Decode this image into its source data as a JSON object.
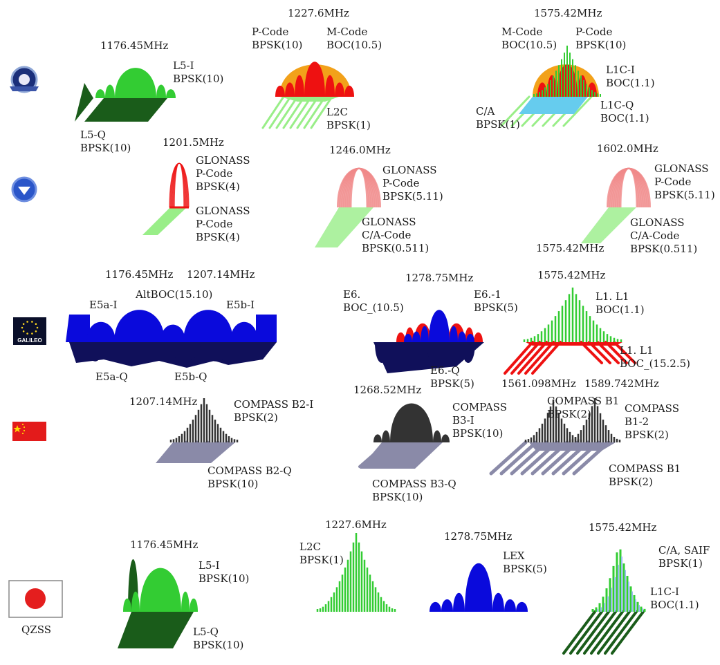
{
  "colors": {
    "gps_green": "#33cc33",
    "gps_dark_green": "#1a5c1a",
    "red": "#ee1111",
    "orange": "#f2a11a",
    "light_blue": "#66ccee",
    "pink": "#f08a8a",
    "light_green": "#99ee88",
    "blue": "#0a0adc",
    "navy": "#10105a",
    "dark_gray": "#333333",
    "slate": "#8a8aa8",
    "qzss_blue": "#99bbee"
  },
  "systems": [
    {
      "name": "GPS",
      "icon": "gps-logo-icon"
    },
    {
      "name": "GLONASS",
      "icon": "glonass-logo-icon"
    },
    {
      "name": "GALILEO",
      "icon": "galileo-logo-icon"
    },
    {
      "name": "COMPASS",
      "icon": "china-flag-icon"
    },
    {
      "name": "QZSS",
      "icon": "japan-flag-icon"
    }
  ],
  "labels": {
    "gps_l5_freq": "1176.45MHz",
    "gps_l5_i": "L5-I\nBPSK(10)",
    "gps_l5_q": "L5-Q\nBPSK(10)",
    "gps_l2_freq": "1227.6MHz",
    "gps_l2_pcode": "P-Code\nBPSK(10)",
    "gps_l2_mcode": "M-Code\nBOC(10.5)",
    "gps_l2c": "L2C\nBPSK(1)",
    "gps_l1_freq": "1575.42MHz",
    "gps_l1_mcode": "M-Code\nBOC(10.5)",
    "gps_l1_pcode": "P-Code\nBPSK(10)",
    "gps_l1ci": "L1C-I\nBOC(1.1)",
    "gps_l1cq": "L1C-Q\nBOC(1.1)",
    "gps_ca": "C/A\nBPSK(1)",
    "glo_g3_freq": "1201.5MHz",
    "glo_g3_p1": "GLONASS\nP-Code\nBPSK(4)",
    "glo_g3_p2": "GLONASS\nP-Code\nBPSK(4)",
    "glo_g2_freq": "1246.0MHz",
    "glo_g2_p": "GLONASS\nP-Code\nBPSK(5.11)",
    "glo_g2_ca": "GLONASS\nC/A-Code\nBPSK(0.511)",
    "glo_g1_freq": "1602.0MHz",
    "glo_g1_p": "GLONASS\nP-Code\nBPSK(5.11)",
    "glo_g1_ca": "GLONASS\nC/A-Code\nBPSK(0.511)",
    "glo_g1_freq2": "1575.42MHz",
    "gal_e5a_freq": "1176.45MHz",
    "gal_e5b_freq": "1207.14MHz",
    "gal_altboc": "AltBOC(15.10)",
    "gal_e5a_i": "E5a-I",
    "gal_e5b_i": "E5b-I",
    "gal_e5a_q": "E5a-Q",
    "gal_e5b_q": "E5b-Q",
    "gal_e6_freq": "1278.75MHz",
    "gal_e6_boc": "E6.\nBOC_(10.5)",
    "gal_e6_1": "E6.-1\nBPSK(5)",
    "gal_e6_q": "E6.-Q\nBPSK(5)",
    "gal_l1_freq": "1575.42MHz",
    "gal_l1_a": "L1. L1\nBOC(1.1)",
    "gal_l1_b": "L1. L1\nBOC_(15.2.5)",
    "gal_logo_text": "GALILEO",
    "cmp_b2_freq": "1207.14MHz",
    "cmp_b2_i": "COMPASS B2-I\nBPSK(2)",
    "cmp_b2_q": "COMPASS B2-Q\nBPSK(10)",
    "cmp_b3_freq": "1268.52MHz",
    "cmp_b3_i": "COMPASS\nB3-I\nBPSK(10)",
    "cmp_b3_q": "COMPASS B3-Q\nBPSK(10)",
    "cmp_b1_freq1": "1561.098MHz",
    "cmp_b1_freq2": "1589.742MHz",
    "cmp_b1_a": "COMPASS B1\nBPSK(2)",
    "cmp_b1_2": "COMPASS\nB1-2\nBPSK(2)",
    "cmp_b1_b": "COMPASS B1\nBPSK(2)",
    "qz_l5_freq": "1176.45MHz",
    "qz_l5_i": "L5-I\nBPSK(10)",
    "qz_l5_q": "L5-Q\nBPSK(10)",
    "qz_l2_freq": "1227.6MHz",
    "qz_l2c": "L2C\nBPSK(1)",
    "qz_lex_freq": "1278.75MHz",
    "qz_lex": "LEX\nBPSK(5)",
    "qz_l1_freq": "1575.42MHz",
    "qz_ca": "C/A, SAIF\nBPSK(1)",
    "qz_l1ci": "L1C-I\nBOC(1.1)",
    "qz_name": "QZSS"
  }
}
